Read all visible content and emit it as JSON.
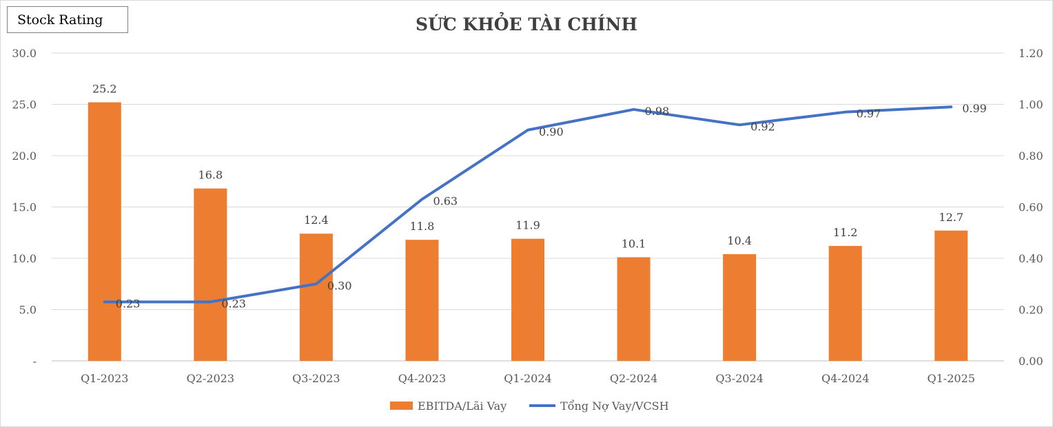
{
  "header": {
    "badge": "Stock Rating"
  },
  "chart_data": {
    "type": "bar",
    "title": "SỨC KHỎE TÀI CHÍNH",
    "categories": [
      "Q1-2023",
      "Q2-2023",
      "Q3-2023",
      "Q4-2023",
      "Q1-2024",
      "Q2-2024",
      "Q3-2024",
      "Q4-2024",
      "Q1-2025"
    ],
    "series": [
      {
        "name": "EBITDA/Lãi Vay",
        "type": "bar",
        "axis": "left",
        "color": "#ED7D31",
        "values": [
          25.2,
          16.8,
          12.4,
          11.8,
          11.9,
          10.1,
          10.4,
          11.2,
          12.7
        ],
        "labels": [
          "25.2",
          "16.8",
          "12.4",
          "11.8",
          "11.9",
          "10.1",
          "10.4",
          "11.2",
          "12.7"
        ]
      },
      {
        "name": "Tổng Nợ Vay/VCSH",
        "type": "line",
        "axis": "right",
        "color": "#4472C4",
        "values": [
          0.23,
          0.23,
          0.3,
          0.63,
          0.9,
          0.98,
          0.92,
          0.97,
          0.99
        ],
        "labels": [
          "0.23",
          "0.23",
          "0.30",
          "0.63",
          "0.90",
          "0.98",
          "0.92",
          "0.97",
          "0.99"
        ]
      }
    ],
    "y_left": {
      "min": 0,
      "max": 30,
      "ticks": [
        "-",
        "5.0",
        "10.0",
        "15.0",
        "20.0",
        "25.0",
        "30.0"
      ],
      "tick_values": [
        0,
        5,
        10,
        15,
        20,
        25,
        30
      ]
    },
    "y_right": {
      "min": 0,
      "max": 1.2,
      "ticks": [
        "0.00",
        "0.20",
        "0.40",
        "0.60",
        "0.80",
        "1.00",
        "1.20"
      ],
      "tick_values": [
        0,
        0.2,
        0.4,
        0.6,
        0.8,
        1.0,
        1.2
      ]
    },
    "grid": true,
    "legend_position": "bottom"
  }
}
